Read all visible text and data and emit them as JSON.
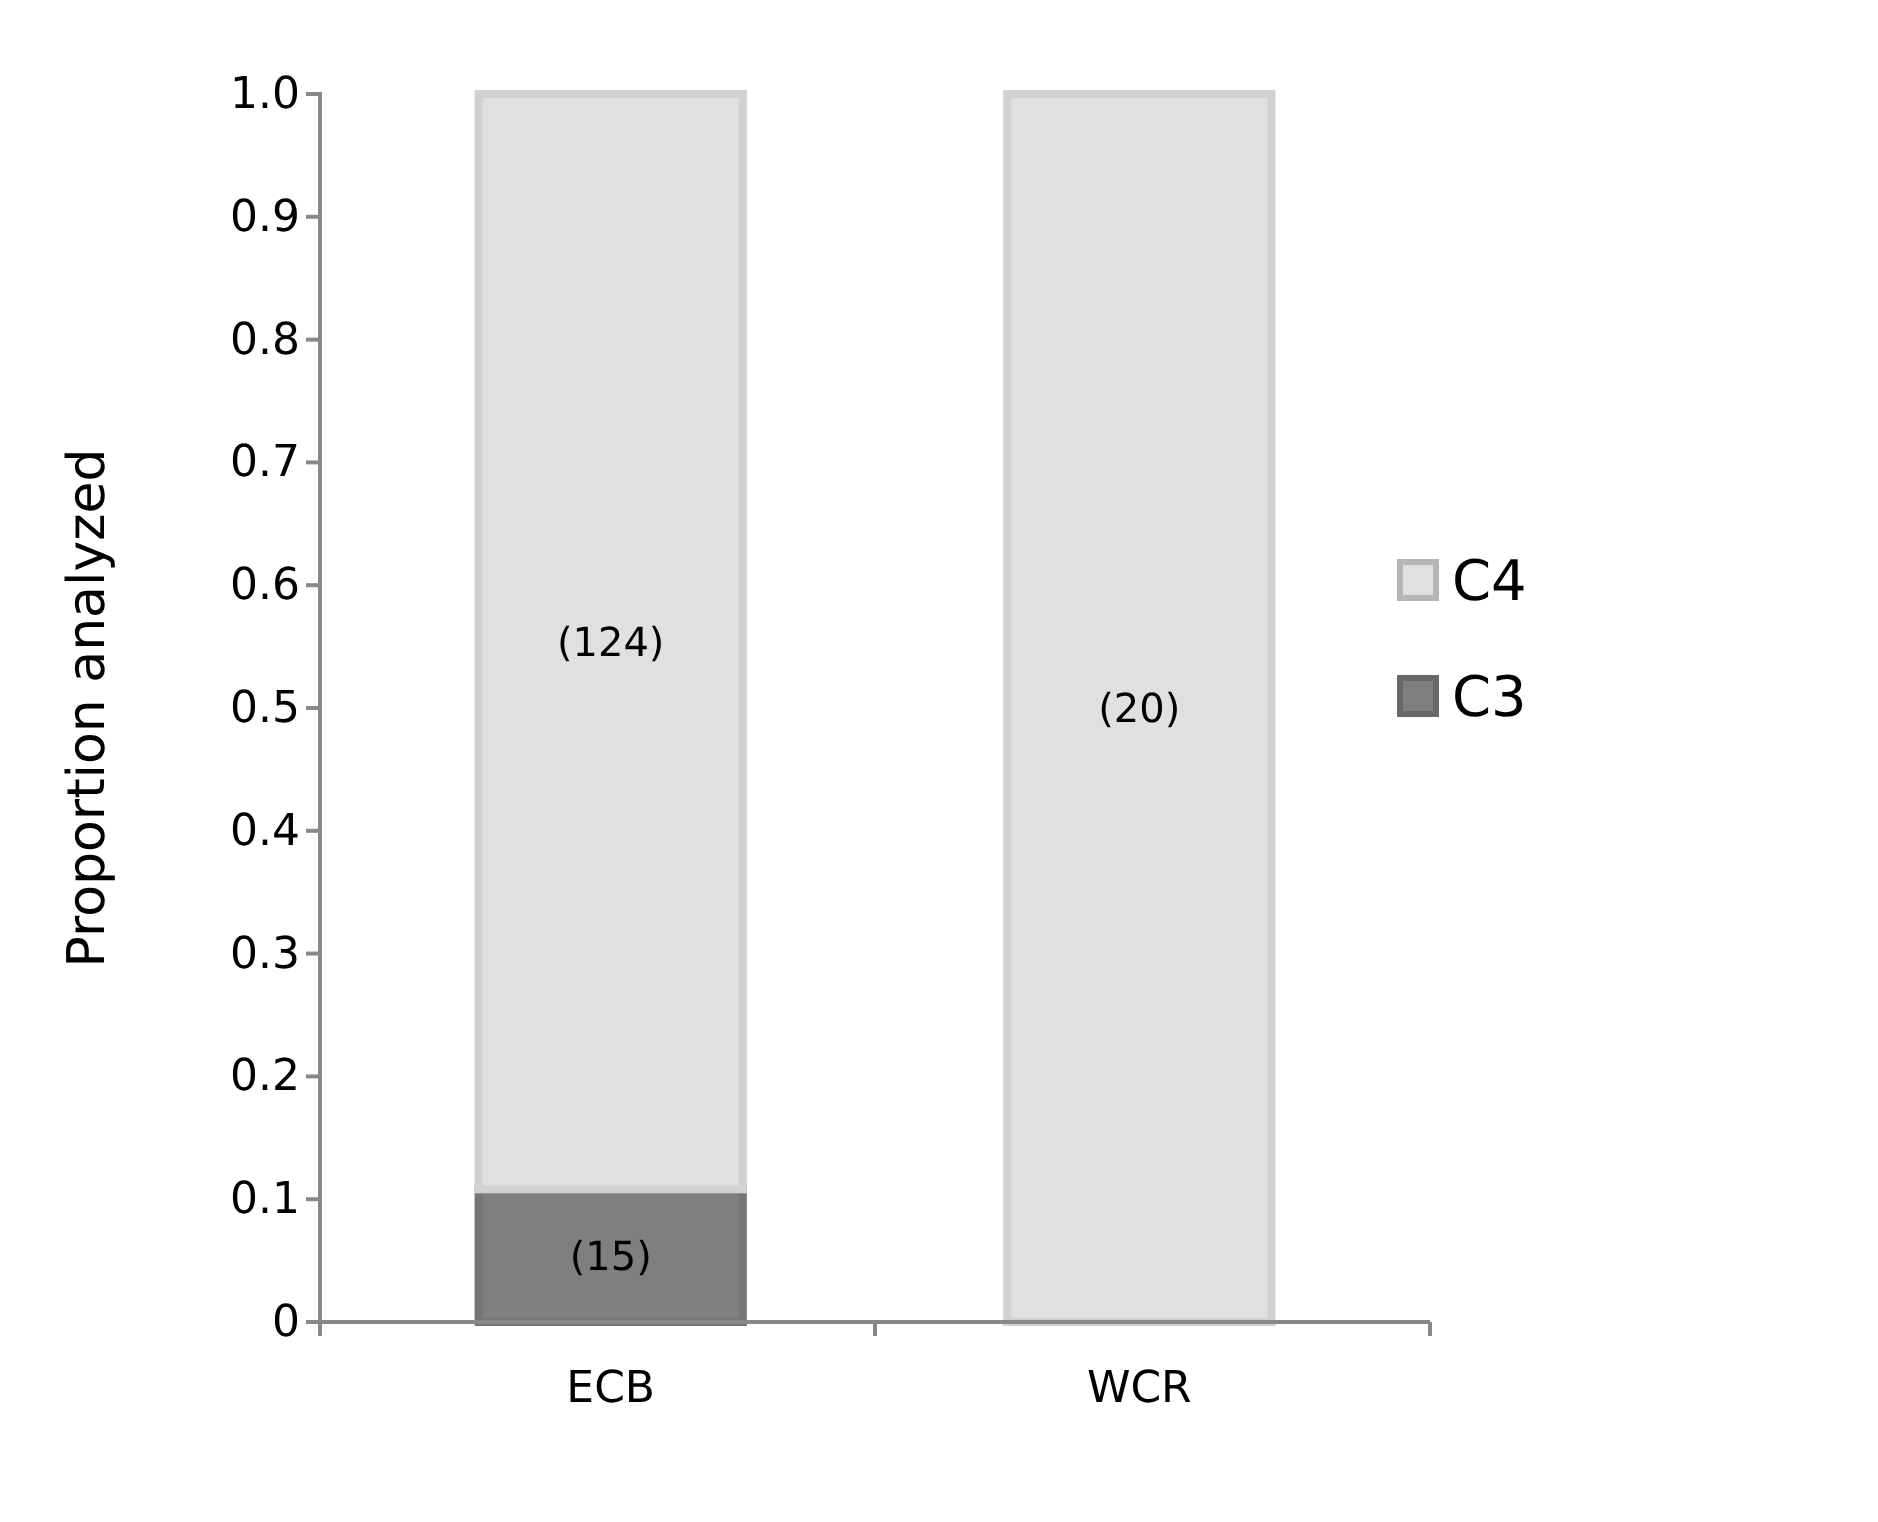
{
  "chart_data": {
    "type": "bar",
    "stacked": true,
    "ylabel": "Proportion analyzed",
    "categories": [
      "ECB",
      "WCR"
    ],
    "series": [
      {
        "name": "C3",
        "color": "#7f7f7f",
        "values": [
          0.108,
          0
        ]
      },
      {
        "name": "C4",
        "color": "#e0e0e0",
        "values": [
          0.892,
          1.0
        ]
      }
    ],
    "annotations": [
      "(15)",
      "(124)",
      "(20)"
    ],
    "ylim": [
      0,
      1
    ],
    "yticks": [
      0,
      0.1,
      0.2,
      0.3,
      0.4,
      0.5,
      0.6,
      0.7,
      0.8,
      0.9,
      {
        "value": 1,
        "label": "1.0"
      }
    ],
    "grid": false,
    "legend": "right"
  }
}
